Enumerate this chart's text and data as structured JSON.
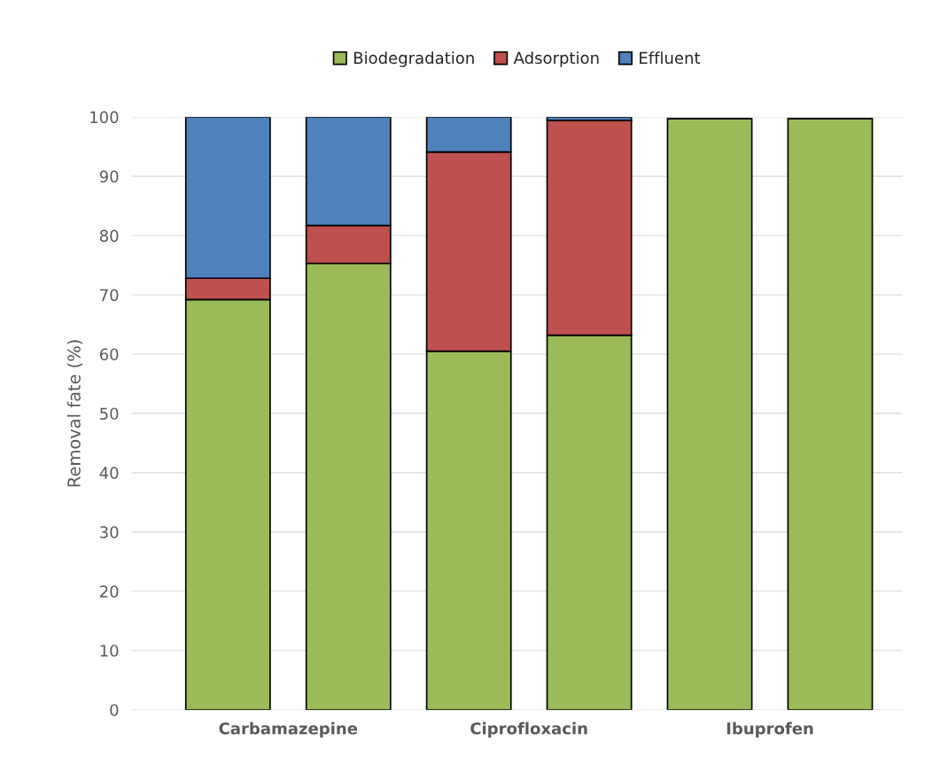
{
  "chart_data": {
    "type": "bar",
    "stacked": true,
    "ylabel": "Removal fate (%)",
    "categories": [
      "Carbamazepine",
      null,
      "Ciprofloxacin",
      null,
      "Ibuprofen",
      null
    ],
    "series": [
      {
        "name": "Biodegradation",
        "color": "#9bbb59",
        "values": [
          69.2,
          75.3,
          60.5,
          63.2,
          99.7,
          99.7
        ]
      },
      {
        "name": "Adsorption",
        "color": "#c0504d",
        "values": [
          3.6,
          6.4,
          33.6,
          36.2,
          null,
          null
        ]
      },
      {
        "name": "Effluent",
        "color": "#4f81bd",
        "values": [
          27.2,
          18.3,
          5.9,
          0.6,
          null,
          null
        ]
      }
    ],
    "ylim": [
      0,
      100
    ],
    "yticks": [
      0,
      10,
      20,
      30,
      40,
      50,
      60,
      70,
      80,
      90,
      100
    ],
    "grid": "y",
    "legend": "top"
  }
}
